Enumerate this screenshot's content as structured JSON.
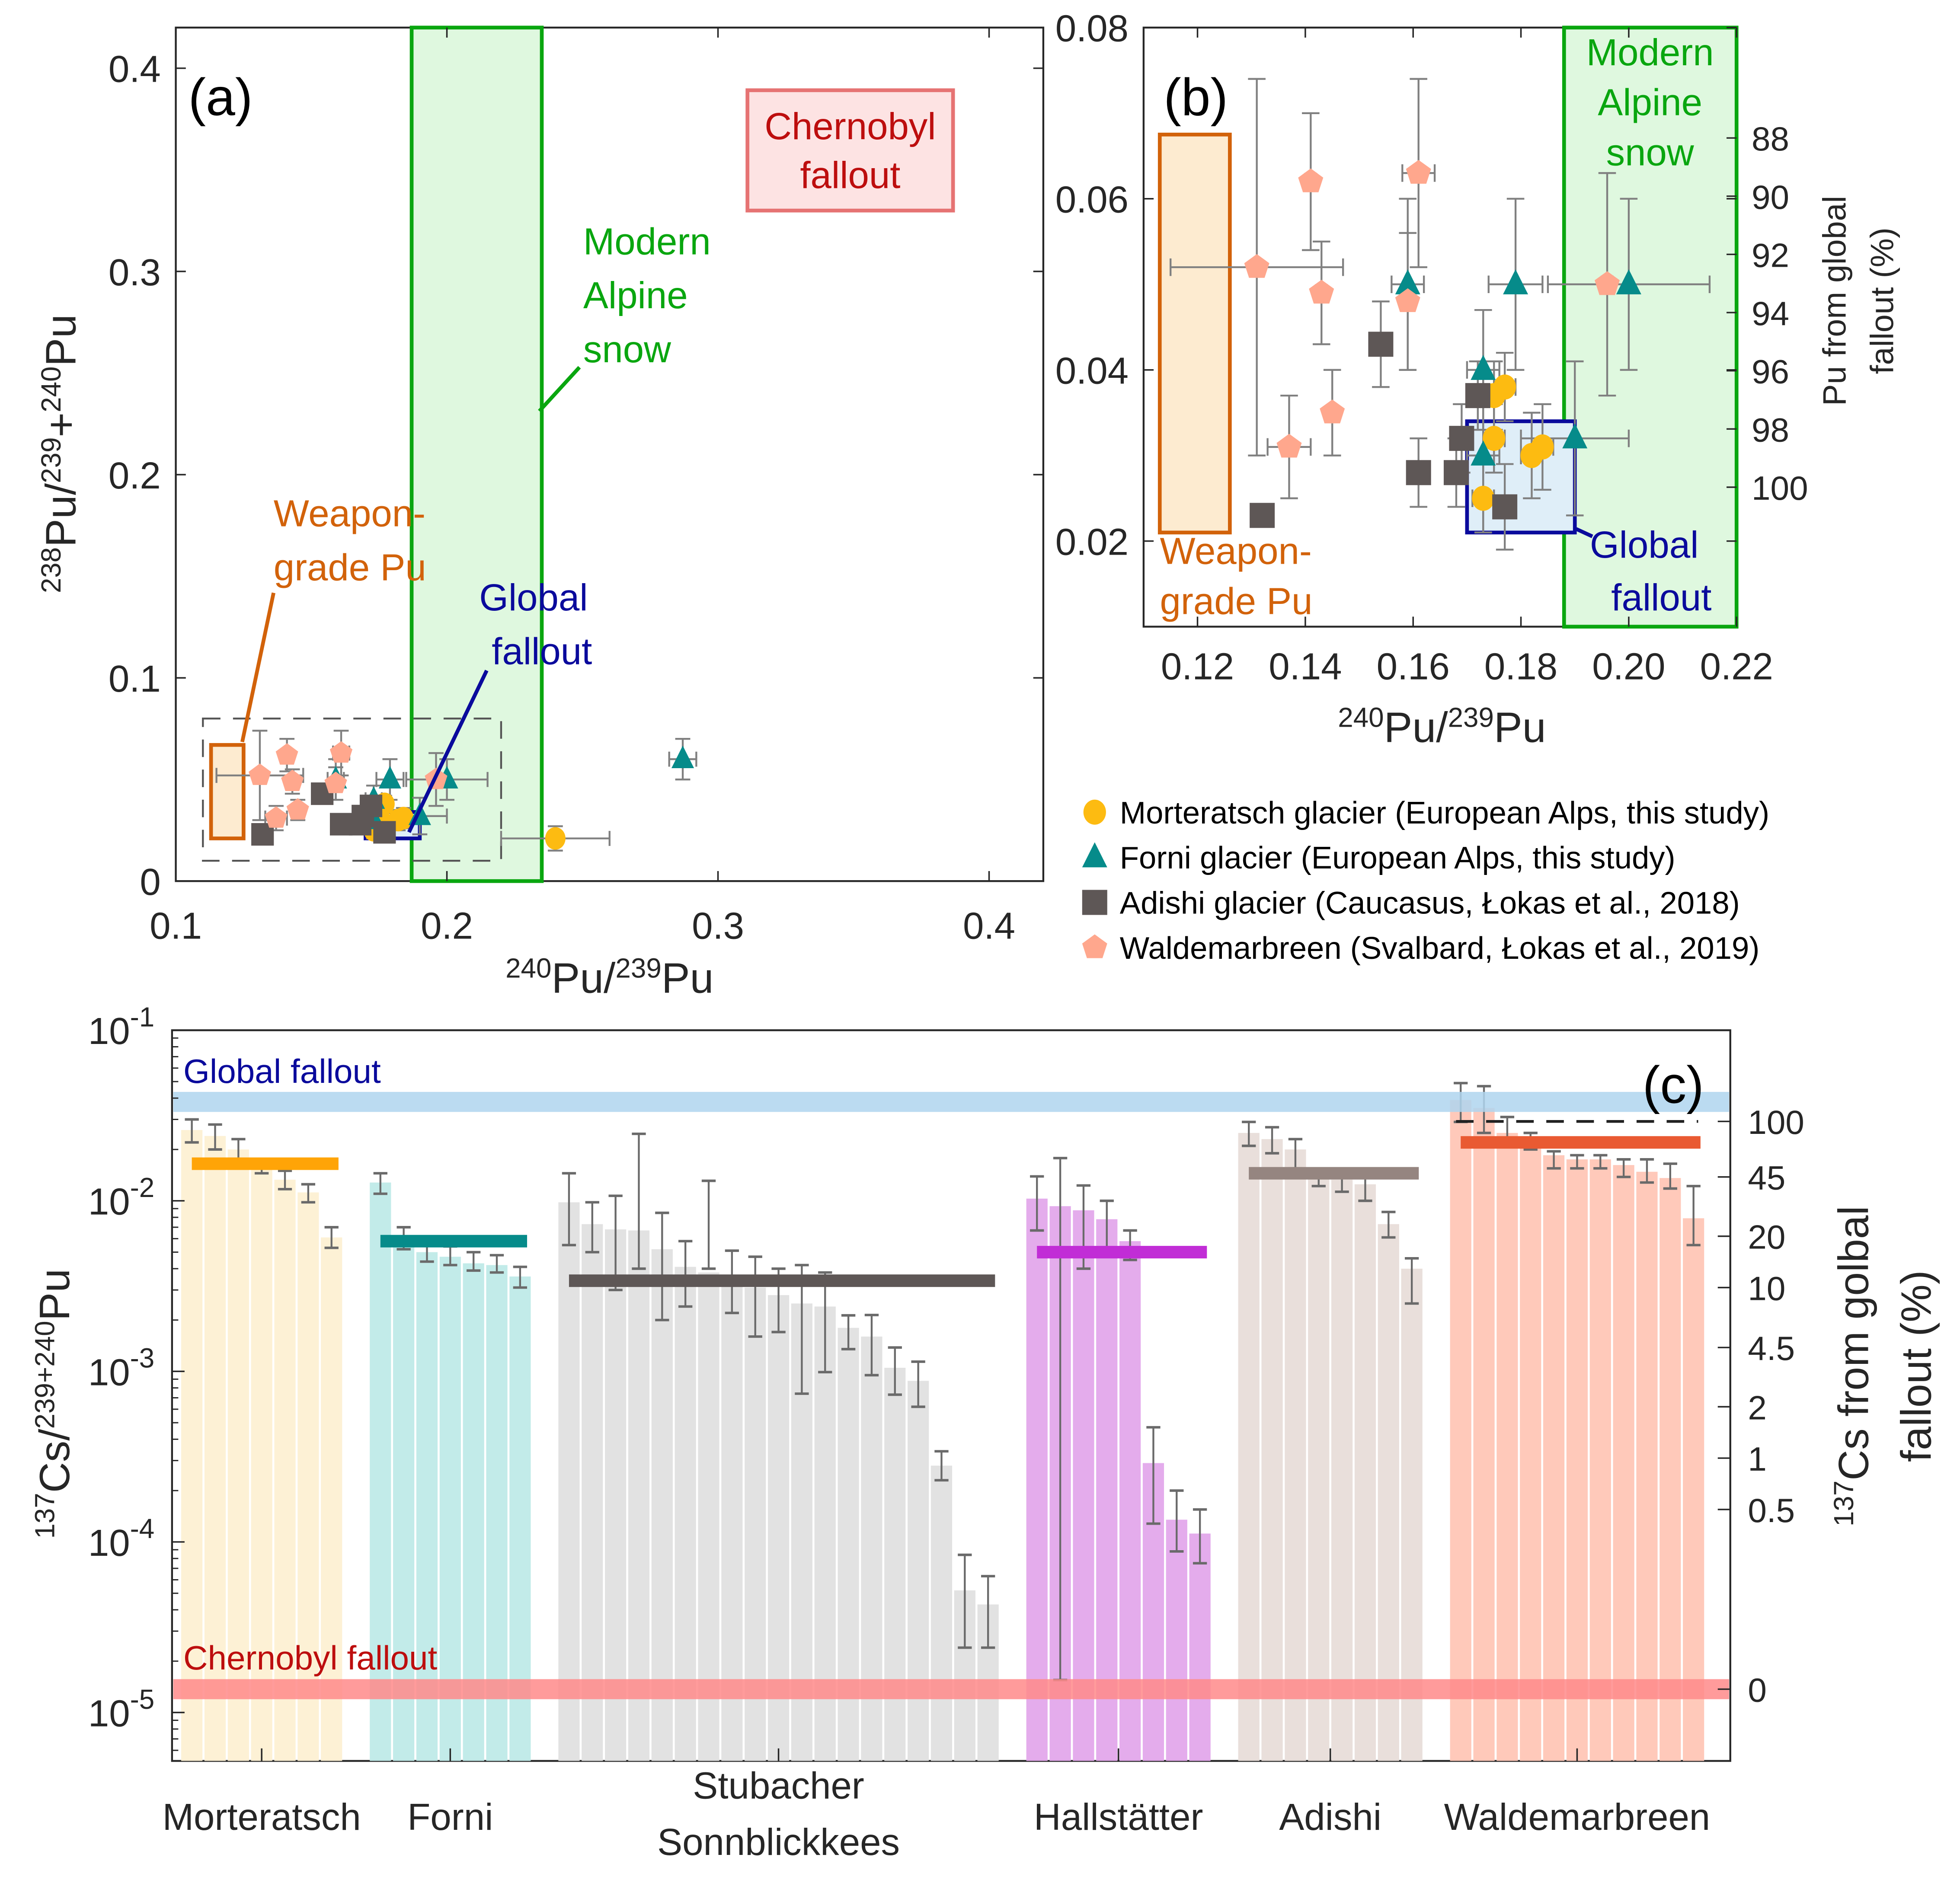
{
  "colors": {
    "morteratsch": "#FDBB11",
    "forni": "#068B8A",
    "adishi": "#5E5756",
    "waldemarbreen": "#FFA78D",
    "errorbar": "#808080",
    "weapon": "#D2620A",
    "weapon_fill": "#FDEBD0",
    "alpine": "#09A60F",
    "alpine_fill": "#DBF7DB",
    "global": "#0A0A9C",
    "global_fill": "#DFEEF8",
    "chernobyl": "#BD0E0E",
    "chernobyl_fill": "#FDE3E3",
    "chernobyl_edge": "#E67373"
  },
  "chart_data": [
    {
      "id": "a",
      "type": "scatter",
      "panel_label": "(a)",
      "xlabel": {
        "sup1": "240",
        "base1": "Pu/",
        "sup2": "239",
        "base2": "Pu"
      },
      "ylabel": {
        "sup1": "238",
        "base1": "Pu/",
        "sup2": "239",
        "base2": "+",
        "sup3": "240",
        "base3": "Pu"
      },
      "xlim": [
        0.1,
        0.42
      ],
      "ylim": [
        0,
        0.42
      ],
      "xticks": [
        "0.1",
        "0.2",
        "0.3",
        "0.4"
      ],
      "xtick_values": [
        0.1,
        0.2,
        0.3,
        0.4
      ],
      "yticks": [
        "0",
        "0.1",
        "0.2",
        "0.3",
        "0.4"
      ],
      "ytick_values": [
        0,
        0.1,
        0.2,
        0.3,
        0.4
      ],
      "regions": [
        {
          "name": "Weapon-grade Pu",
          "x": [
            0.113,
            0.125
          ],
          "y": [
            0.021,
            0.067
          ],
          "style": "weapon"
        },
        {
          "name": "Modern Alpine snow",
          "x": [
            0.187,
            0.235
          ],
          "y": [
            0,
            0.42
          ],
          "style": "alpine"
        },
        {
          "name": "Global fallout",
          "x": [
            0.17,
            0.19
          ],
          "y": [
            0.021,
            0.034
          ],
          "style": "global"
        },
        {
          "name": "Zoom region (b)",
          "x": [
            0.11,
            0.22
          ],
          "y": [
            0.01,
            0.08
          ],
          "style": "dashed"
        }
      ],
      "annotations": [
        {
          "text_lines": [
            "Chernobyl",
            "fallout"
          ],
          "style": "chernobyl",
          "boxed": true
        },
        {
          "text_lines": [
            "Modern",
            "Alpine",
            "snow"
          ],
          "style": "alpine"
        },
        {
          "text_lines": [
            "Weapon-",
            "grade Pu"
          ],
          "style": "weapon"
        },
        {
          "text_lines": [
            "Global",
            "fallout"
          ],
          "style": "global"
        }
      ],
      "outliers": [
        {
          "series": "Morteratsch",
          "x": 0.24,
          "y": 0.021,
          "xerr": 0.02,
          "yerr": 0.006
        },
        {
          "series": "Forni",
          "x": 0.287,
          "y": 0.06,
          "xerr": 0.005,
          "yerr": 0.01
        }
      ]
    },
    {
      "id": "b",
      "type": "scatter",
      "panel_label": "(b)",
      "xlabel": {
        "sup1": "240",
        "base1": "Pu/",
        "sup2": "239",
        "base2": "Pu"
      },
      "y2label_lines": [
        "Pu from global",
        "fallout (%)"
      ],
      "xlim": [
        0.11,
        0.22
      ],
      "ylim": [
        0.01,
        0.08
      ],
      "xticks": [
        "0.12",
        "0.14",
        "0.16",
        "0.18",
        "0.20",
        "0.22"
      ],
      "xtick_values": [
        0.12,
        0.14,
        0.16,
        0.18,
        0.2,
        0.22
      ],
      "yticks": [
        "0.02",
        "0.04",
        "0.06",
        "0.08"
      ],
      "ytick_values": [
        0.02,
        0.04,
        0.06,
        0.08
      ],
      "y2ticks": [
        "88",
        "90",
        "92",
        "94",
        "96",
        "98",
        "100"
      ],
      "y2tick_values": [
        0.0671,
        0.0603,
        0.0535,
        0.0467,
        0.0399,
        0.0331,
        0.0263
      ],
      "regions": [
        {
          "name": "Weapon-grade Pu",
          "x": [
            0.113,
            0.126
          ],
          "y": [
            0.021,
            0.0675
          ],
          "style": "weapon"
        },
        {
          "name": "Modern Alpine snow",
          "x": [
            0.188,
            0.22
          ],
          "y": [
            0.01,
            0.08
          ],
          "style": "alpine"
        },
        {
          "name": "Global fallout",
          "x": [
            0.17,
            0.19
          ],
          "y": [
            0.021,
            0.034
          ],
          "style": "global"
        }
      ],
      "annotations": [
        {
          "text_lines": [
            "Modern",
            "Alpine",
            "snow"
          ],
          "style": "alpine"
        },
        {
          "text_lines": [
            "Weapon-",
            "grade Pu"
          ],
          "style": "weapon"
        },
        {
          "text_lines": [
            "Global",
            "fallout"
          ],
          "style": "global"
        }
      ],
      "series": [
        {
          "name": "Morteratsch glacier (European Alps, this study)",
          "key": "morteratsch",
          "marker": "circle",
          "points": [
            {
              "x": 0.177,
              "y": 0.038,
              "xerr": 0.002,
              "yerr": 0.004
            },
            {
              "x": 0.175,
              "y": 0.037,
              "xerr": 0.002,
              "yerr": 0.004
            },
            {
              "x": 0.175,
              "y": 0.032,
              "xerr": 0.002,
              "yerr": 0.004
            },
            {
              "x": 0.182,
              "y": 0.03,
              "xerr": 0.002,
              "yerr": 0.005
            },
            {
              "x": 0.184,
              "y": 0.031,
              "xerr": 0.002,
              "yerr": 0.005
            },
            {
              "x": 0.173,
              "y": 0.025,
              "xerr": 0.002,
              "yerr": 0.004
            }
          ]
        },
        {
          "name": "Forni glacier (European Alps, this study)",
          "key": "forni",
          "marker": "triangle",
          "points": [
            {
              "x": 0.159,
              "y": 0.05,
              "xerr": 0.003,
              "yerr": 0.01
            },
            {
              "x": 0.179,
              "y": 0.05,
              "xerr": 0.005,
              "yerr": 0.01
            },
            {
              "x": 0.2,
              "y": 0.05,
              "xerr": 0.015,
              "yerr": 0.01
            },
            {
              "x": 0.173,
              "y": 0.04,
              "xerr": 0.003,
              "yerr": 0.007
            },
            {
              "x": 0.19,
              "y": 0.032,
              "xerr": 0.01,
              "yerr": 0.009
            },
            {
              "x": 0.173,
              "y": 0.03,
              "xerr": 0.003,
              "yerr": 0.009
            }
          ]
        },
        {
          "name": "Adishi glacier (Caucasus, Łokas et al., 2018)",
          "key": "adishi",
          "marker": "square",
          "points": [
            {
              "x": 0.154,
              "y": 0.043,
              "xerr": 0.0,
              "yerr": 0.005
            },
            {
              "x": 0.172,
              "y": 0.037,
              "xerr": 0.002,
              "yerr": 0.004
            },
            {
              "x": 0.169,
              "y": 0.032,
              "xerr": 0.001,
              "yerr": 0.004
            },
            {
              "x": 0.161,
              "y": 0.028,
              "xerr": 0.0,
              "yerr": 0.004
            },
            {
              "x": 0.168,
              "y": 0.028,
              "xerr": 0.0,
              "yerr": 0.004
            },
            {
              "x": 0.177,
              "y": 0.024,
              "xerr": 0.001,
              "yerr": 0.005
            },
            {
              "x": 0.132,
              "y": 0.023,
              "xerr": 0.0,
              "yerr": 0.001
            }
          ]
        },
        {
          "name": "Waldemarbreen (Svalbard, Łokas et al., 2019)",
          "key": "waldemarbreen",
          "marker": "pentagon",
          "points": [
            {
              "x": 0.161,
              "y": 0.063,
              "xerr": 0.003,
              "yerr": 0.011
            },
            {
              "x": 0.141,
              "y": 0.062,
              "xerr": 0.001,
              "yerr": 0.008
            },
            {
              "x": 0.131,
              "y": 0.052,
              "xerr": 0.016,
              "yerr": 0.022
            },
            {
              "x": 0.143,
              "y": 0.049,
              "xerr": 0.001,
              "yerr": 0.006
            },
            {
              "x": 0.159,
              "y": 0.048,
              "xerr": 0.001,
              "yerr": 0.008
            },
            {
              "x": 0.196,
              "y": 0.05,
              "xerr": 0.001,
              "yerr": 0.013
            },
            {
              "x": 0.145,
              "y": 0.035,
              "xerr": 0.0,
              "yerr": 0.005
            },
            {
              "x": 0.137,
              "y": 0.031,
              "xerr": 0.004,
              "yerr": 0.006
            }
          ]
        }
      ]
    },
    {
      "id": "c",
      "type": "bar",
      "panel_label": "(c)",
      "yscale": "log",
      "ylim": [
        5.2e-06,
        0.1
      ],
      "ylabel": {
        "sup1": "137",
        "base1": "Cs/",
        "sup2": "239+240",
        "base2": "Pu"
      },
      "y2label": {
        "line1_sup": "137",
        "line1_base": "Cs from golbal",
        "line2": "fallout (%)"
      },
      "yticks": [
        {
          "base": "10",
          "exp": "-1",
          "value": 0.1
        },
        {
          "base": "10",
          "exp": "-2",
          "value": 0.01
        },
        {
          "base": "10",
          "exp": "-3",
          "value": 0.001
        },
        {
          "base": "10",
          "exp": "-4",
          "value": 0.0001
        },
        {
          "base": "10",
          "exp": "-5",
          "value": 1e-05
        }
      ],
      "y2ticks": [
        {
          "label": "100",
          "value": 0.0292
        },
        {
          "label": "45",
          "value": 0.0138
        },
        {
          "label": "20",
          "value": 0.0062
        },
        {
          "label": "10",
          "value": 0.0031
        },
        {
          "label": "4.5",
          "value": 0.00138
        },
        {
          "label": "2",
          "value": 0.00062
        },
        {
          "label": "1",
          "value": 0.00031
        },
        {
          "label": "0.5",
          "value": 0.000155
        },
        {
          "label": "0",
          "value": 1.37e-05
        }
      ],
      "reference_bands": [
        {
          "name": "Global fallout",
          "value": 0.038,
          "color": "#AFD5EF",
          "text_color": "#0A0A9C"
        },
        {
          "name": "Chernobyl fallout",
          "value": 1.37e-05,
          "color": "#FF8A8A",
          "text_color": "#BD0E0E"
        }
      ],
      "dashed_reference": {
        "value": 0.0292,
        "group": "Waldemarbreen"
      },
      "groups": [
        {
          "name": "Morteratsch",
          "label_lines": [
            "Morteratsch"
          ],
          "bar_color": "#FDF0D3",
          "mean_color": "#FFA407",
          "mean": 0.0165,
          "values": [
            0.026,
            0.024,
            0.02,
            0.0155,
            0.0133,
            0.0112,
            0.0061
          ],
          "err_low": [
            0.022,
            0.02,
            0.016,
            0.0145,
            0.0117,
            0.0098,
            0.0053
          ],
          "err_high": [
            0.03,
            0.028,
            0.023,
            0.0158,
            0.015,
            0.0125,
            0.007
          ]
        },
        {
          "name": "Forni",
          "label_lines": [
            "Forni"
          ],
          "bar_color": "#BFEAE8",
          "mean_color": "#068B8A",
          "mean": 0.0058,
          "values": [
            0.0128,
            0.006,
            0.005,
            0.0047,
            0.0043,
            0.0042,
            0.0036
          ],
          "err_low": [
            0.011,
            0.0052,
            0.0044,
            0.0042,
            0.0039,
            0.0038,
            0.0031
          ],
          "err_high": [
            0.0145,
            0.007,
            0.0058,
            0.0054,
            0.005,
            0.0048,
            0.0041
          ]
        },
        {
          "name": "Stubacher Sonnblickkees",
          "label_lines": [
            "Stubacher",
            "Sonnblickkees"
          ],
          "bar_color": "#E0E0E0",
          "mean_color": "#5E5756",
          "mean": 0.0034,
          "values": [
            0.0098,
            0.0073,
            0.0068,
            0.0067,
            0.0052,
            0.0041,
            0.0038,
            0.0034,
            0.0031,
            0.0028,
            0.0025,
            0.0024,
            0.0018,
            0.0016,
            0.00105,
            0.00088,
            0.00028,
            5.2e-05,
            4.3e-05
          ],
          "err_low": [
            0.0055,
            0.005,
            0.003,
            0.004,
            0.002,
            0.0024,
            0.004,
            0.0022,
            0.0016,
            0.0017,
            0.00074,
            0.00099,
            0.00135,
            0.00095,
            0.00073,
            0.00062,
            0.00023,
            2.4e-05,
            2.4e-05
          ],
          "err_high": [
            0.0145,
            0.0098,
            0.0107,
            0.0247,
            0.0085,
            0.0058,
            0.0131,
            0.0051,
            0.0047,
            0.004,
            0.0042,
            0.0038,
            0.00213,
            0.00214,
            0.00138,
            0.00114,
            0.00034,
            8.4e-05,
            6.3e-05
          ]
        },
        {
          "name": "Hallstätter",
          "label_lines": [
            "Hallstätter"
          ],
          "bar_color": "#E3A8EB",
          "mean_color": "#C12DD6",
          "mean": 0.005,
          "values": [
            0.0103,
            0.0093,
            0.0088,
            0.0078,
            0.0058,
            0.00029,
            0.000135,
            0.000112
          ],
          "err_low": [
            0.0067,
            1.55e-05,
            0.004,
            0.005,
            0.0045,
            0.000128,
            8.8e-05,
            7.5e-05
          ],
          "err_high": [
            0.0139,
            0.0178,
            0.0123,
            0.01,
            0.0067,
            0.00047,
            0.0002,
            0.000155
          ]
        },
        {
          "name": "Adishi",
          "label_lines": [
            "Adishi"
          ],
          "bar_color": "#E8DDD9",
          "mean_color": "#958580",
          "mean": 0.0145,
          "values": [
            0.025,
            0.023,
            0.02,
            0.0145,
            0.0133,
            0.0125,
            0.0073,
            0.004
          ],
          "err_low": [
            0.021,
            0.019,
            0.0155,
            0.0122,
            0.0113,
            0.01,
            0.0061,
            0.0025
          ],
          "err_high": [
            0.029,
            0.027,
            0.023,
            0.015,
            0.015,
            0.015,
            0.0086,
            0.0046
          ]
        },
        {
          "name": "Waldemarbreen",
          "label_lines": [
            "Waldemarbreen"
          ],
          "bar_color": "#FFC6B6",
          "mean_color": "#E95A32",
          "mean": 0.022,
          "values": [
            0.039,
            0.035,
            0.025,
            0.023,
            0.0185,
            0.0175,
            0.0175,
            0.0162,
            0.0148,
            0.0136,
            0.0079
          ],
          "err_low": [
            0.029,
            0.025,
            0.023,
            0.02,
            0.0155,
            0.0155,
            0.0155,
            0.0138,
            0.0128,
            0.0118,
            0.0055
          ],
          "err_high": [
            0.049,
            0.047,
            0.031,
            0.025,
            0.0195,
            0.0185,
            0.0185,
            0.0175,
            0.0175,
            0.0165,
            0.0122
          ]
        }
      ],
      "annotations": [
        {
          "text": "Global fallout",
          "style": "global"
        },
        {
          "text": "Chernobyl fallout",
          "style": "chernobyl"
        }
      ]
    }
  ],
  "legend": [
    {
      "key": "morteratsch",
      "marker": "circle",
      "label": "Morteratsch glacier (European Alps, this study)"
    },
    {
      "key": "forni",
      "marker": "triangle",
      "label": "Forni glacier (European Alps, this study)"
    },
    {
      "key": "adishi",
      "marker": "square",
      "label": "Adishi glacier (Caucasus, Łokas et al., 2018)"
    },
    {
      "key": "waldemarbreen",
      "marker": "pentagon",
      "label": "Waldemarbreen (Svalbard, Łokas et al., 2019)"
    }
  ]
}
